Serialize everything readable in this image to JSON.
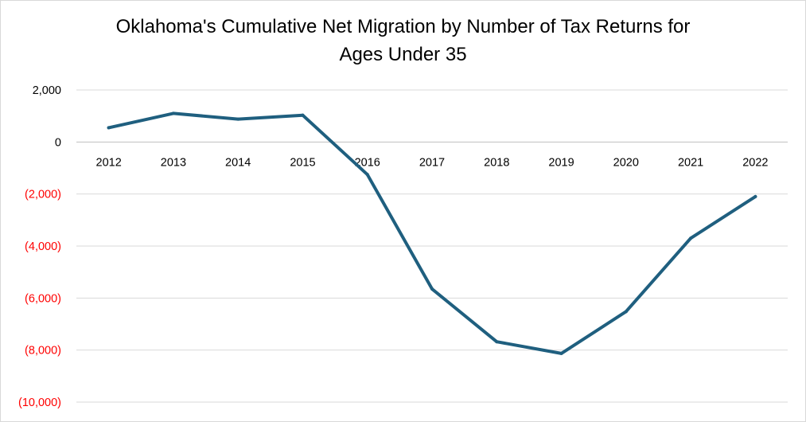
{
  "chart_data": {
    "type": "line",
    "title_line1": "Oklahoma's Cumulative Net Migration by Number of Tax Returns for",
    "title_line2": "Ages Under 35",
    "xlabel": "",
    "ylabel": "",
    "categories": [
      "2012",
      "2013",
      "2014",
      "2015",
      "2016",
      "2017",
      "2018",
      "2019",
      "2020",
      "2021",
      "2022"
    ],
    "series": [
      {
        "values": [
          550,
          1100,
          880,
          1030,
          -1250,
          -5650,
          -7680,
          -8130,
          -6520,
          -3700,
          -2100
        ]
      }
    ],
    "ylim": [
      -10000,
      2000
    ],
    "yticks": [
      {
        "value": 2000,
        "label": "2,000"
      },
      {
        "value": 0,
        "label": "0"
      },
      {
        "value": -2000,
        "label": "(2,000)"
      },
      {
        "value": -4000,
        "label": "(4,000)"
      },
      {
        "value": -6000,
        "label": "(6,000)"
      },
      {
        "value": -8000,
        "label": "(8,000)"
      },
      {
        "value": -10000,
        "label": "(10,000)"
      }
    ],
    "grid": true,
    "legend": "none",
    "colors": {
      "line": "#1f5f7f",
      "gridline": "#d9d9d9",
      "axis": "#bfbfbf",
      "negative_label": "#ff0000",
      "positive_label": "#000000"
    }
  }
}
